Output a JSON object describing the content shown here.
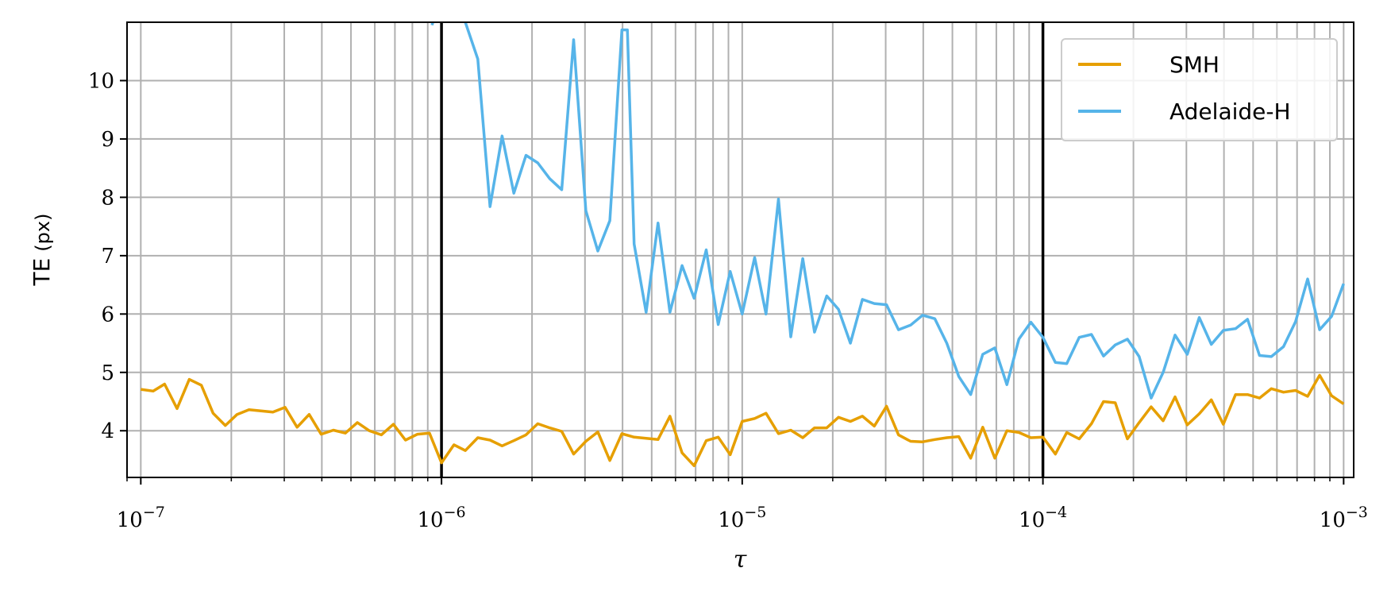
{
  "chart_data": {
    "type": "line",
    "title": "",
    "xlabel": "τ",
    "ylabel_main": "TE",
    "ylabel_unit": "(px)",
    "xscale": "log",
    "xlim": [
      9e-08,
      0.00108
    ],
    "ylim": [
      3.2,
      11.0
    ],
    "yticks": [
      4,
      5,
      6,
      7,
      8,
      9,
      10
    ],
    "xticks": [
      {
        "value": 1e-07,
        "base": "10",
        "exp": "−7"
      },
      {
        "value": 1e-06,
        "base": "10",
        "exp": "−6"
      },
      {
        "value": 1e-05,
        "base": "10",
        "exp": "−5"
      },
      {
        "value": 0.0001,
        "base": "10",
        "exp": "−4"
      },
      {
        "value": 0.001,
        "base": "10",
        "exp": "−3"
      }
    ],
    "grid": true,
    "vlines": [
      1e-06,
      0.0001
    ],
    "legend_position": "upper-right",
    "series": [
      {
        "name": "SMH",
        "color": "#e69f00",
        "x": [
          1e-07,
          1.1e-07,
          1.2e-07,
          1.32e-07,
          1.45e-07,
          1.59e-07,
          1.74e-07,
          1.91e-07,
          2.09e-07,
          2.29e-07,
          2.51e-07,
          2.75e-07,
          3.02e-07,
          3.31e-07,
          3.63e-07,
          3.98e-07,
          4.37e-07,
          4.79e-07,
          5.25e-07,
          5.75e-07,
          6.31e-07,
          6.92e-07,
          7.59e-07,
          8.32e-07,
          9.12e-07,
          1e-06,
          1.1e-06,
          1.2e-06,
          1.32e-06,
          1.45e-06,
          1.59e-06,
          1.74e-06,
          1.91e-06,
          2.09e-06,
          2.29e-06,
          2.51e-06,
          2.75e-06,
          3.02e-06,
          3.31e-06,
          3.63e-06,
          3.98e-06,
          4.37e-06,
          4.79e-06,
          5.25e-06,
          5.75e-06,
          6.31e-06,
          6.92e-06,
          7.59e-06,
          8.32e-06,
          9.12e-06,
          1e-05,
          1.1e-05,
          1.2e-05,
          1.32e-05,
          1.45e-05,
          1.59e-05,
          1.74e-05,
          1.91e-05,
          2.09e-05,
          2.29e-05,
          2.51e-05,
          2.75e-05,
          3.02e-05,
          3.31e-05,
          3.63e-05,
          3.98e-05,
          4.37e-05,
          4.79e-05,
          5.25e-05,
          5.75e-05,
          6.31e-05,
          6.92e-05,
          7.59e-05,
          8.32e-05,
          9.12e-05,
          0.0001,
          0.00011,
          0.00012,
          0.000132,
          0.000145,
          0.000159,
          0.000174,
          0.000191,
          0.000209,
          0.000229,
          0.000251,
          0.000275,
          0.000302,
          0.000331,
          0.000363,
          0.000398,
          0.000437,
          0.000479,
          0.000525,
          0.000575,
          0.000631,
          0.000692,
          0.000759,
          0.000832,
          0.000912,
          0.001
        ],
        "y": [
          4.71,
          4.68,
          4.8,
          4.38,
          4.88,
          4.78,
          4.3,
          4.09,
          4.28,
          4.36,
          4.34,
          4.32,
          4.4,
          4.06,
          4.28,
          3.94,
          4.01,
          3.96,
          4.14,
          4.0,
          3.93,
          4.11,
          3.84,
          3.94,
          3.96,
          3.45,
          3.76,
          3.66,
          3.88,
          3.84,
          3.74,
          3.83,
          3.93,
          4.12,
          4.05,
          3.99,
          3.6,
          3.82,
          3.98,
          3.49,
          3.95,
          3.89,
          3.87,
          3.85,
          4.25,
          3.62,
          3.4,
          3.83,
          3.89,
          3.59,
          4.16,
          4.21,
          4.3,
          3.95,
          4.01,
          3.88,
          4.05,
          4.05,
          4.23,
          4.16,
          4.25,
          4.08,
          4.42,
          3.93,
          3.82,
          3.81,
          3.85,
          3.88,
          3.9,
          3.53,
          4.06,
          3.53,
          4.0,
          3.97,
          3.88,
          3.89,
          3.6,
          3.97,
          3.86,
          4.12,
          4.5,
          4.48,
          3.86,
          4.14,
          4.41,
          4.17,
          4.58,
          4.1,
          4.29,
          4.53,
          4.11,
          4.62,
          4.62,
          4.56,
          4.72,
          4.66,
          4.69,
          4.59,
          4.95,
          4.6,
          4.46
        ]
      },
      {
        "name": "Adelaide-H",
        "color": "#56b4e9",
        "x": [
          9.3e-07,
          9.6e-07,
          1e-06,
          1.1e-06,
          1.2e-06,
          1.32e-06,
          1.45e-06,
          1.59e-06,
          1.74e-06,
          1.91e-06,
          2.09e-06,
          2.29e-06,
          2.51e-06,
          2.75e-06,
          3.02e-06,
          3.31e-06,
          3.63e-06,
          3.98e-06,
          4.15e-06,
          4.37e-06,
          4.79e-06,
          5.25e-06,
          5.75e-06,
          6.31e-06,
          6.92e-06,
          7.59e-06,
          8.32e-06,
          9.12e-06,
          1e-05,
          1.1e-05,
          1.2e-05,
          1.32e-05,
          1.45e-05,
          1.59e-05,
          1.74e-05,
          1.91e-05,
          2.09e-05,
          2.29e-05,
          2.51e-05,
          2.75e-05,
          3.02e-05,
          3.31e-05,
          3.63e-05,
          3.98e-05,
          4.37e-05,
          4.79e-05,
          5.25e-05,
          5.75e-05,
          6.31e-05,
          6.92e-05,
          7.59e-05,
          8.32e-05,
          9.12e-05,
          0.0001,
          0.00011,
          0.00012,
          0.000132,
          0.000145,
          0.000159,
          0.000174,
          0.000191,
          0.000209,
          0.000229,
          0.000251,
          0.000275,
          0.000302,
          0.000331,
          0.000363,
          0.000398,
          0.000437,
          0.000479,
          0.000525,
          0.000575,
          0.000631,
          0.000692,
          0.000759,
          0.000832,
          0.000912,
          0.001
        ],
        "y": [
          10.95,
          11.2,
          11.8,
          11.6,
          11.0,
          10.37,
          7.84,
          9.05,
          8.07,
          8.72,
          8.59,
          8.32,
          8.13,
          10.7,
          7.77,
          7.08,
          7.6,
          10.87,
          10.87,
          7.2,
          6.03,
          7.56,
          6.03,
          6.83,
          6.27,
          7.1,
          5.82,
          6.73,
          6.0,
          6.97,
          6.0,
          7.97,
          5.61,
          6.95,
          5.69,
          6.31,
          6.08,
          5.5,
          6.25,
          6.18,
          6.16,
          5.73,
          5.81,
          5.98,
          5.92,
          5.5,
          4.93,
          4.62,
          5.31,
          5.42,
          4.79,
          5.57,
          5.86,
          5.6,
          5.17,
          5.15,
          5.6,
          5.65,
          5.28,
          5.47,
          5.57,
          5.27,
          4.56,
          5.0,
          5.64,
          5.31,
          5.94,
          5.48,
          5.72,
          5.75,
          5.91,
          5.29,
          5.27,
          5.44,
          5.87,
          6.6,
          5.73,
          5.96,
          6.52
        ]
      }
    ]
  }
}
